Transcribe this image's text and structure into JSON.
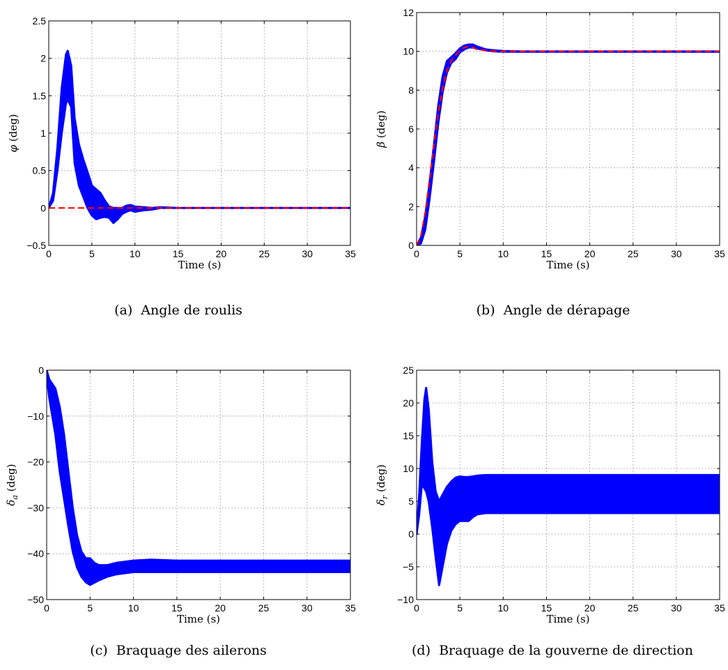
{
  "chart_data": [
    {
      "type": "line",
      "caption": "(a)  Angle de roulis",
      "xlabel": "Time (s)",
      "ylabel_symbol": "φ",
      "ylabel_sub": "",
      "ylabel_unit": " (deg)",
      "xlim": [
        0,
        35
      ],
      "ylim": [
        -0.5,
        2.5
      ],
      "xticks": [
        "0",
        "5",
        "10",
        "15",
        "20",
        "25",
        "30",
        "35"
      ],
      "yticks": [
        "−0.5",
        "0",
        "0.5",
        "1",
        "1.5",
        "2",
        "2.5"
      ],
      "ytick_values": [
        -0.5,
        0,
        0.5,
        1,
        1.5,
        2,
        2.5
      ],
      "grid": true,
      "band": {
        "color": "#0000ff",
        "x": [
          0,
          0.5,
          1.0,
          1.5,
          2.0,
          2.2,
          2.6,
          3.0,
          3.5,
          4.0,
          4.5,
          5.0,
          5.5,
          6.0,
          6.5,
          7.0,
          7.5,
          8.0,
          8.5,
          9.0,
          9.5,
          10.0,
          11.0,
          12.0,
          13.0,
          15.0,
          35.0
        ],
        "upper": [
          0.0,
          0.2,
          0.8,
          1.6,
          2.05,
          2.1,
          1.9,
          1.2,
          0.85,
          0.65,
          0.48,
          0.3,
          0.25,
          0.2,
          0.1,
          0.02,
          0.0,
          0.0,
          0.0,
          0.03,
          0.04,
          0.02,
          0.01,
          0.0,
          0.01,
          0.0,
          0.0
        ],
        "lower": [
          0.0,
          0.1,
          0.5,
          1.0,
          1.4,
          1.45,
          1.35,
          0.6,
          0.3,
          0.15,
          0.0,
          -0.1,
          -0.15,
          -0.13,
          -0.12,
          -0.13,
          -0.2,
          -0.15,
          -0.08,
          -0.05,
          -0.03,
          -0.05,
          -0.03,
          -0.02,
          0.0,
          0.0,
          0.0
        ]
      },
      "reference": {
        "color": "#ff0000",
        "x": [
          0,
          35
        ],
        "y": [
          0,
          0
        ]
      }
    },
    {
      "type": "line",
      "caption": "(b)  Angle de dérapage",
      "xlabel": "Time (s)",
      "ylabel_symbol": "β",
      "ylabel_sub": "",
      "ylabel_unit": " (deg)",
      "xlim": [
        0,
        35
      ],
      "ylim": [
        0,
        12
      ],
      "xticks": [
        "0",
        "5",
        "10",
        "15",
        "20",
        "25",
        "30",
        "35"
      ],
      "yticks": [
        "0",
        "2",
        "4",
        "6",
        "8",
        "10",
        "12"
      ],
      "ytick_values": [
        0,
        2,
        4,
        6,
        8,
        10,
        12
      ],
      "grid": true,
      "band": {
        "color": "#0000ff",
        "x": [
          0,
          0.5,
          1.0,
          1.5,
          2.0,
          2.5,
          3.0,
          3.5,
          4.0,
          4.5,
          5.0,
          5.5,
          6.0,
          6.5,
          7.0,
          8.0,
          9.0,
          10.0,
          12.0,
          35.0
        ],
        "upper": [
          0.0,
          0.4,
          1.5,
          3.2,
          5.2,
          7.2,
          8.7,
          9.5,
          9.7,
          9.9,
          10.15,
          10.3,
          10.35,
          10.35,
          10.25,
          10.1,
          10.05,
          10.02,
          10.0,
          10.0
        ],
        "lower": [
          0.0,
          0.1,
          0.8,
          2.4,
          4.3,
          6.3,
          7.9,
          8.9,
          9.4,
          9.6,
          9.95,
          10.1,
          10.2,
          10.2,
          10.15,
          10.05,
          10.0,
          9.98,
          9.98,
          9.98
        ]
      },
      "reference": {
        "color": "#ff0000",
        "x": [
          0,
          0.5,
          1.0,
          1.5,
          2.0,
          2.5,
          3.0,
          3.5,
          4.0,
          4.5,
          5.0,
          5.5,
          6.0,
          6.5,
          7.0,
          8.0,
          9.0,
          10.0,
          35.0
        ],
        "y": [
          0.0,
          0.5,
          1.7,
          3.4,
          5.2,
          6.8,
          8.1,
          9.0,
          9.5,
          9.8,
          10.05,
          10.2,
          10.25,
          10.2,
          10.1,
          10.05,
          10.0,
          10.0,
          10.0
        ]
      }
    },
    {
      "type": "line",
      "caption": "(c)  Braquage des ailerons",
      "xlabel": "Time (s)",
      "ylabel_symbol": "δ",
      "ylabel_sub": "a",
      "ylabel_unit": " (deg)",
      "xlim": [
        0,
        35
      ],
      "ylim": [
        -50,
        0
      ],
      "xticks": [
        "0",
        "5",
        "10",
        "15",
        "20",
        "25",
        "30",
        "35"
      ],
      "yticks": [
        "−50",
        "−40",
        "−30",
        "−20",
        "−10",
        "0"
      ],
      "ytick_values": [
        -50,
        -40,
        -30,
        -20,
        -10,
        0
      ],
      "grid": true,
      "band": {
        "color": "#0000ff",
        "x": [
          0,
          0.3,
          1.0,
          1.5,
          2.0,
          2.5,
          3.0,
          3.5,
          4.0,
          4.5,
          5.0,
          5.5,
          6.0,
          7.0,
          8.0,
          10.0,
          12.0,
          15.0,
          35.0
        ],
        "upper": [
          0.0,
          -2.0,
          -4.0,
          -8.0,
          -14.0,
          -22.0,
          -30.0,
          -36.0,
          -39.5,
          -41.0,
          -41.0,
          -42.0,
          -42.5,
          -42.5,
          -42.0,
          -41.5,
          -41.3,
          -41.5,
          -41.5
        ],
        "lower": [
          -1.0,
          -6.0,
          -14.0,
          -22.0,
          -28.0,
          -34.0,
          -39.5,
          -43.0,
          -45.0,
          -46.2,
          -46.8,
          -46.3,
          -45.8,
          -45.0,
          -44.5,
          -44.0,
          -44.0,
          -44.0,
          -44.0
        ]
      },
      "reference": null
    },
    {
      "type": "line",
      "caption": "(d)  Braquage de la gouverne de direction",
      "xlabel": "Time (s)",
      "ylabel_symbol": "δ",
      "ylabel_sub": "r",
      "ylabel_unit": " (deg)",
      "xlim": [
        0,
        35
      ],
      "ylim": [
        -10,
        25
      ],
      "xticks": [
        "0",
        "5",
        "10",
        "15",
        "20",
        "25",
        "30",
        "35"
      ],
      "yticks": [
        "−10",
        "−5",
        "0",
        "5",
        "10",
        "15",
        "20",
        "25"
      ],
      "ytick_values": [
        -10,
        -5,
        0,
        5,
        10,
        15,
        20,
        25
      ],
      "grid": true,
      "band": {
        "color": "#0000ff",
        "x": [
          0,
          0.3,
          0.6,
          0.9,
          1.1,
          1.4,
          1.8,
          2.2,
          2.6,
          3.0,
          3.5,
          4.0,
          4.5,
          5.0,
          5.5,
          6.0,
          6.5,
          7.0,
          8.0,
          10.0,
          15.0,
          35.0
        ],
        "upper": [
          0.0,
          6.0,
          14.0,
          20.5,
          22.3,
          19.0,
          11.0,
          6.5,
          5.0,
          6.0,
          7.2,
          8.0,
          8.6,
          8.8,
          8.7,
          8.7,
          8.8,
          8.9,
          9.0,
          9.0,
          9.0,
          9.0
        ],
        "lower": [
          0.0,
          3.0,
          7.5,
          7.0,
          6.5,
          5.0,
          1.0,
          -3.5,
          -7.8,
          -5.0,
          -1.5,
          0.5,
          1.5,
          2.0,
          2.0,
          2.0,
          2.6,
          3.0,
          3.2,
          3.2,
          3.2,
          3.2
        ]
      },
      "reference": null
    }
  ]
}
